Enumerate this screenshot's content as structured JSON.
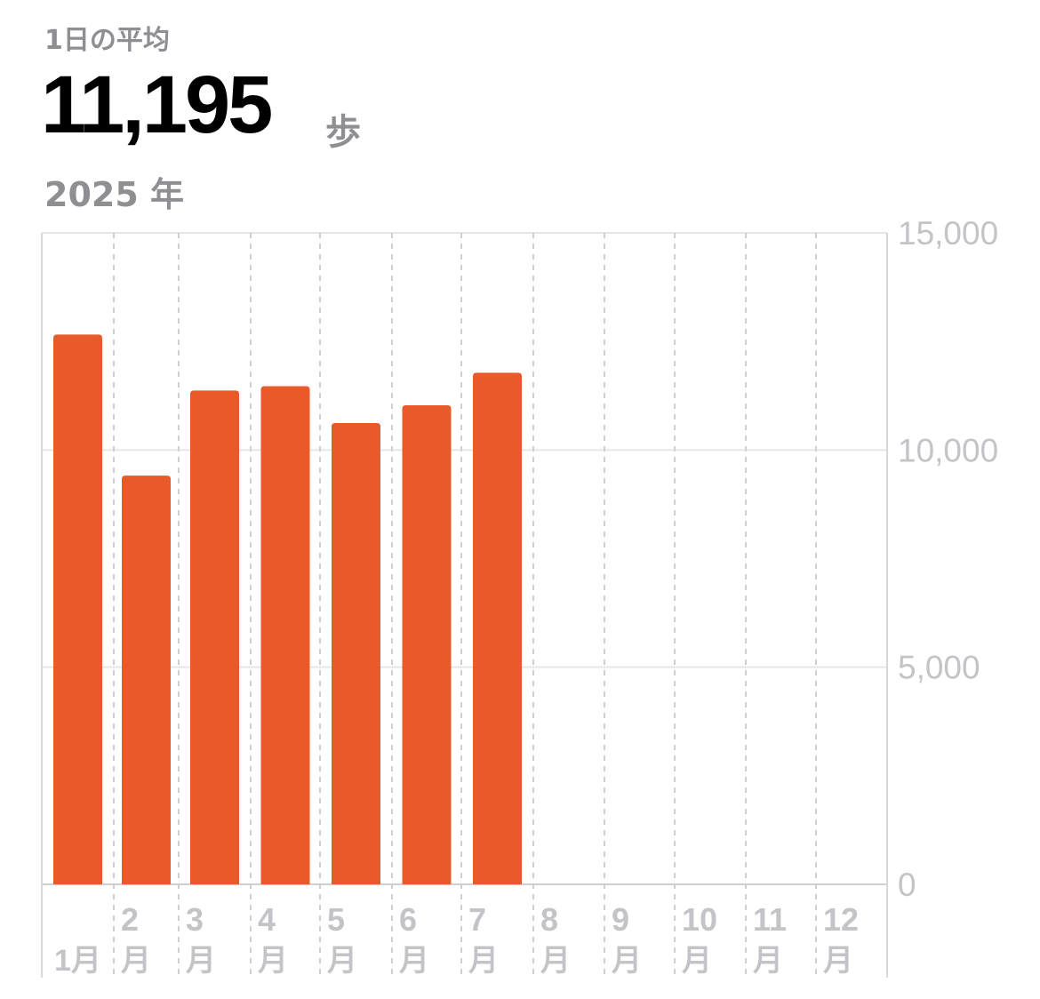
{
  "header": {
    "label": "1日の平均",
    "value": "11,195",
    "unit": "歩",
    "period": "2025 年"
  },
  "chart_data": {
    "type": "bar",
    "categories": [
      "1月",
      "2月",
      "3月",
      "4月",
      "5月",
      "6月",
      "7月",
      "8月",
      "9月",
      "10月",
      "11月",
      "12月"
    ],
    "category_numbers": [
      "1",
      "2",
      "3",
      "4",
      "5",
      "6",
      "7",
      "8",
      "9",
      "10",
      "11",
      "12"
    ],
    "month_char": "月",
    "values": [
      12660,
      9410,
      11370,
      11470,
      10620,
      11030,
      11780,
      null,
      null,
      null,
      null,
      null
    ],
    "ylim": [
      0,
      15000
    ],
    "yticks": [
      0,
      5000,
      10000,
      15000
    ],
    "ytick_labels": [
      "0",
      "5,000",
      "10,000",
      "15,000"
    ],
    "yaxis_position": "right",
    "grid": true,
    "bar_color": "#e95a2b"
  }
}
